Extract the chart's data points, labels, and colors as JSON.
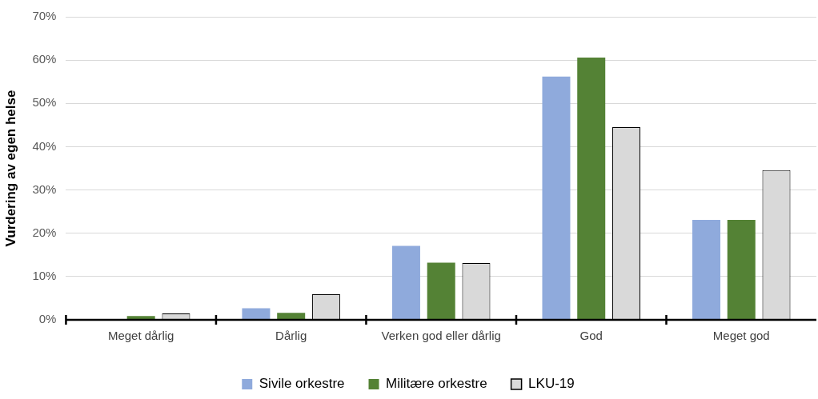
{
  "chart_data": {
    "type": "bar",
    "ylabel": "Vurdering av egen helse",
    "categories": [
      "Meget dårlig",
      "Dårlig",
      "Verken god eller dårlig",
      "God",
      "Meget god"
    ],
    "series": [
      {
        "name": "Sivile orkestre",
        "color": "#8faadc",
        "values": [
          0.2,
          2.7,
          17.1,
          56.2,
          23.1
        ]
      },
      {
        "name": "Militære orkestre",
        "color": "#548235",
        "values": [
          0.9,
          1.6,
          13.2,
          60.6,
          23.1
        ]
      },
      {
        "name": "LKU-19",
        "color": "#d9d9d9",
        "values": [
          1.5,
          5.9,
          13.1,
          44.5,
          34.6
        ]
      }
    ],
    "ylim": [
      0,
      70
    ],
    "yticks": [
      {
        "value": 0,
        "label": "0%"
      },
      {
        "value": 10,
        "label": "10%"
      },
      {
        "value": 20,
        "label": "20%"
      },
      {
        "value": 30,
        "label": "30%"
      },
      {
        "value": 40,
        "label": "40%"
      },
      {
        "value": 50,
        "label": "50%"
      },
      {
        "value": 60,
        "label": "60%"
      },
      {
        "value": 70,
        "label": "70%"
      }
    ],
    "grid": "y",
    "legend": "bottom"
  }
}
